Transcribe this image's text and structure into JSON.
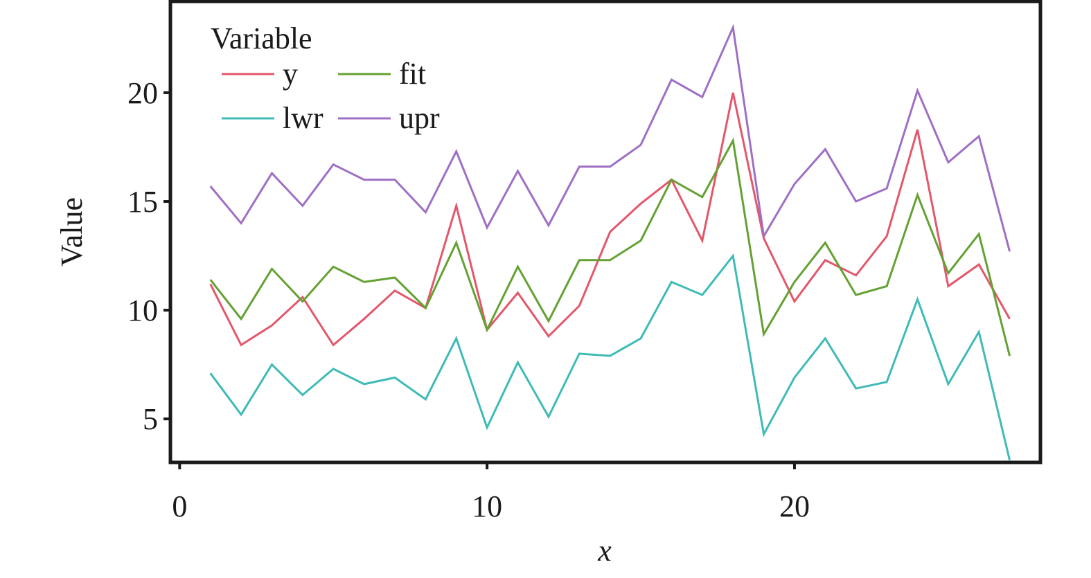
{
  "chart_data": {
    "type": "line",
    "xlabel": "x",
    "ylabel": "Value",
    "xlim": [
      -0.3,
      28
    ],
    "ylim": [
      3.0,
      24.2
    ],
    "xticks": [
      0,
      10,
      20
    ],
    "yticks": [
      5,
      10,
      15,
      20
    ],
    "x": [
      1,
      2,
      3,
      4,
      5,
      6,
      7,
      8,
      9,
      10,
      11,
      12,
      13,
      14,
      15,
      16,
      17,
      18,
      19,
      20,
      21,
      22,
      23,
      24,
      25,
      26,
      27
    ],
    "legend": {
      "title": "Variable",
      "placement": "top-left"
    },
    "series": [
      {
        "name": "y",
        "color": "#e4566b",
        "values": [
          11.2,
          8.4,
          9.3,
          10.6,
          8.4,
          9.6,
          10.9,
          10.1,
          14.8,
          9.1,
          10.8,
          8.8,
          10.2,
          13.6,
          14.9,
          16.0,
          13.2,
          20.0,
          13.3,
          10.4,
          12.3,
          11.6,
          13.4,
          18.3,
          11.1,
          12.1,
          9.6
        ]
      },
      {
        "name": "fit",
        "color": "#63a132",
        "values": [
          11.4,
          9.6,
          11.9,
          10.4,
          12.0,
          11.3,
          11.5,
          10.1,
          13.1,
          9.1,
          12.0,
          9.5,
          12.3,
          12.3,
          13.2,
          16.0,
          15.2,
          17.8,
          8.9,
          11.3,
          13.1,
          10.7,
          11.1,
          15.3,
          11.7,
          13.5,
          7.9
        ]
      },
      {
        "name": "lwr",
        "color": "#3ebbb7",
        "values": [
          7.1,
          5.2,
          7.5,
          6.1,
          7.3,
          6.6,
          6.9,
          5.9,
          8.7,
          4.6,
          7.6,
          5.1,
          8.0,
          7.9,
          8.7,
          11.3,
          10.7,
          12.5,
          4.3,
          6.9,
          8.7,
          6.4,
          6.7,
          10.5,
          6.6,
          9.0,
          3.1
        ]
      },
      {
        "name": "upr",
        "color": "#9e6fc4",
        "values": [
          15.7,
          14.0,
          16.3,
          14.8,
          16.7,
          16.0,
          16.0,
          14.5,
          17.3,
          13.8,
          16.4,
          13.9,
          16.6,
          16.6,
          17.6,
          20.6,
          19.8,
          23.0,
          13.4,
          15.8,
          17.4,
          15.0,
          15.6,
          20.1,
          16.8,
          18.0,
          12.7
        ]
      }
    ]
  }
}
